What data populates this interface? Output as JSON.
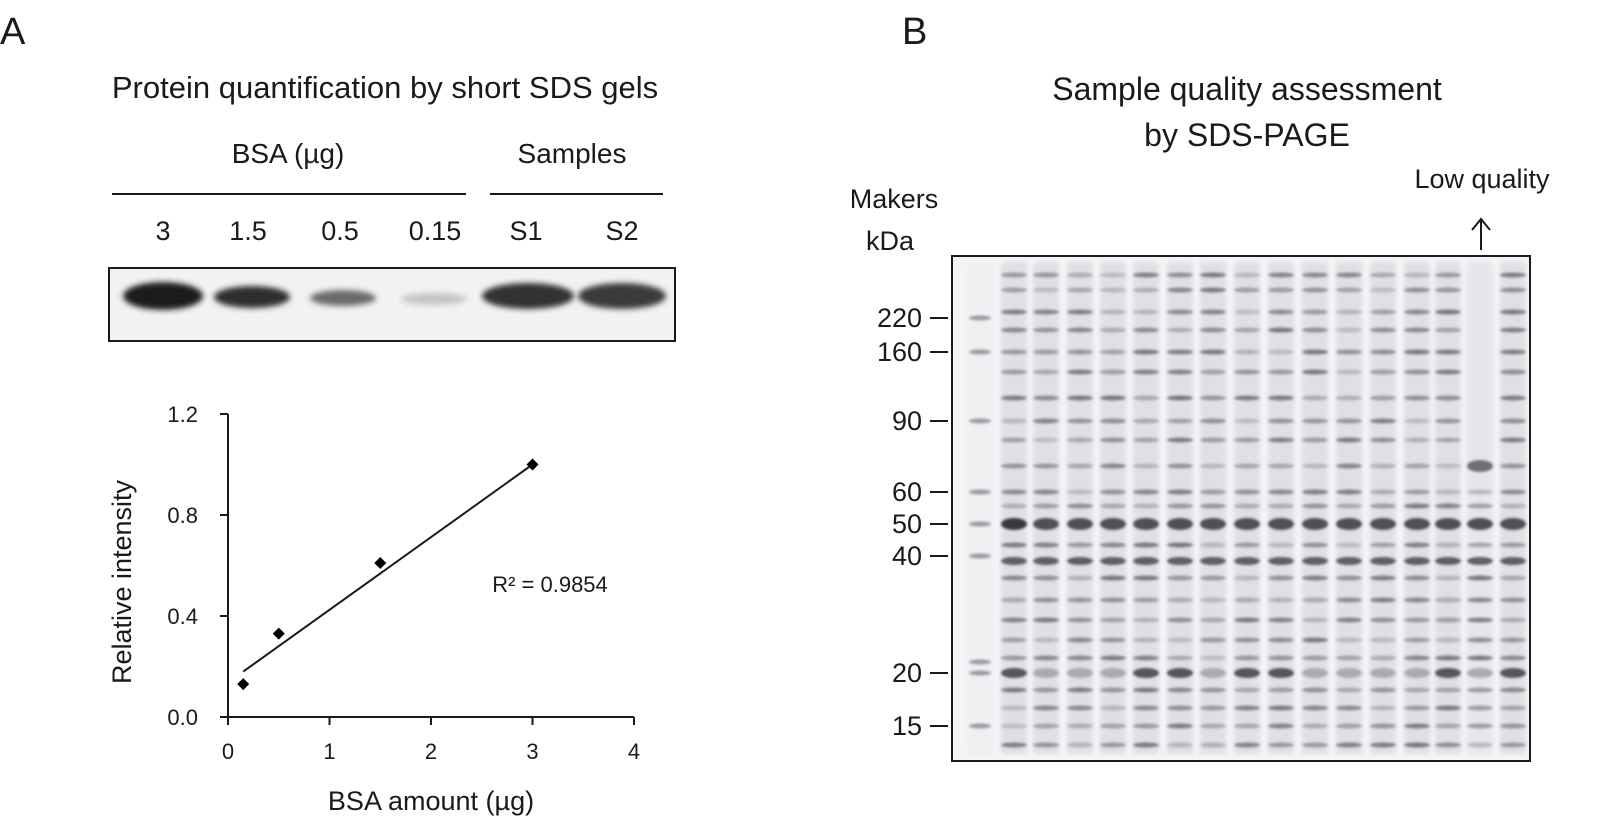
{
  "panel_a": {
    "letter": "A",
    "title": "Protein quantification by short SDS gels",
    "bsa_group_label": "BSA (µg)",
    "samples_group_label": "Samples",
    "lane_labels": [
      "3",
      "1.5",
      "0.5",
      "0.15",
      "S1",
      "S2"
    ]
  },
  "panel_b": {
    "letter": "B",
    "title_line1": "Sample quality assessment",
    "title_line2": "by SDS-PAGE",
    "markers_label_line1": "Makers",
    "markers_label_line2": "kDa",
    "low_quality_label": "Low quality",
    "marker_kda": [
      "220",
      "160",
      "90",
      "60",
      "50",
      "40",
      "20",
      "15"
    ]
  },
  "chart_data": {
    "type": "scatter",
    "title": "",
    "xlabel": "BSA amount (µg)",
    "ylabel": "Relative intensity",
    "xlim": [
      0,
      4
    ],
    "ylim": [
      0,
      1.2
    ],
    "x_ticks": [
      "0",
      "1",
      "2",
      "3",
      "4"
    ],
    "y_ticks": [
      "0.0",
      "0.4",
      "0.8",
      "1.2"
    ],
    "x_tick_values": [
      0,
      1,
      2,
      3,
      4
    ],
    "y_tick_values": [
      0,
      0.4,
      0.8,
      1.2
    ],
    "points": [
      {
        "x": 0.15,
        "y": 0.13
      },
      {
        "x": 0.5,
        "y": 0.33
      },
      {
        "x": 1.5,
        "y": 0.61
      },
      {
        "x": 3,
        "y": 1.0
      }
    ],
    "trendline": {
      "x0": 0.15,
      "y0": 0.18,
      "x1": 3.0,
      "y1": 1.0
    },
    "annotation": "R² = 0.9854"
  }
}
